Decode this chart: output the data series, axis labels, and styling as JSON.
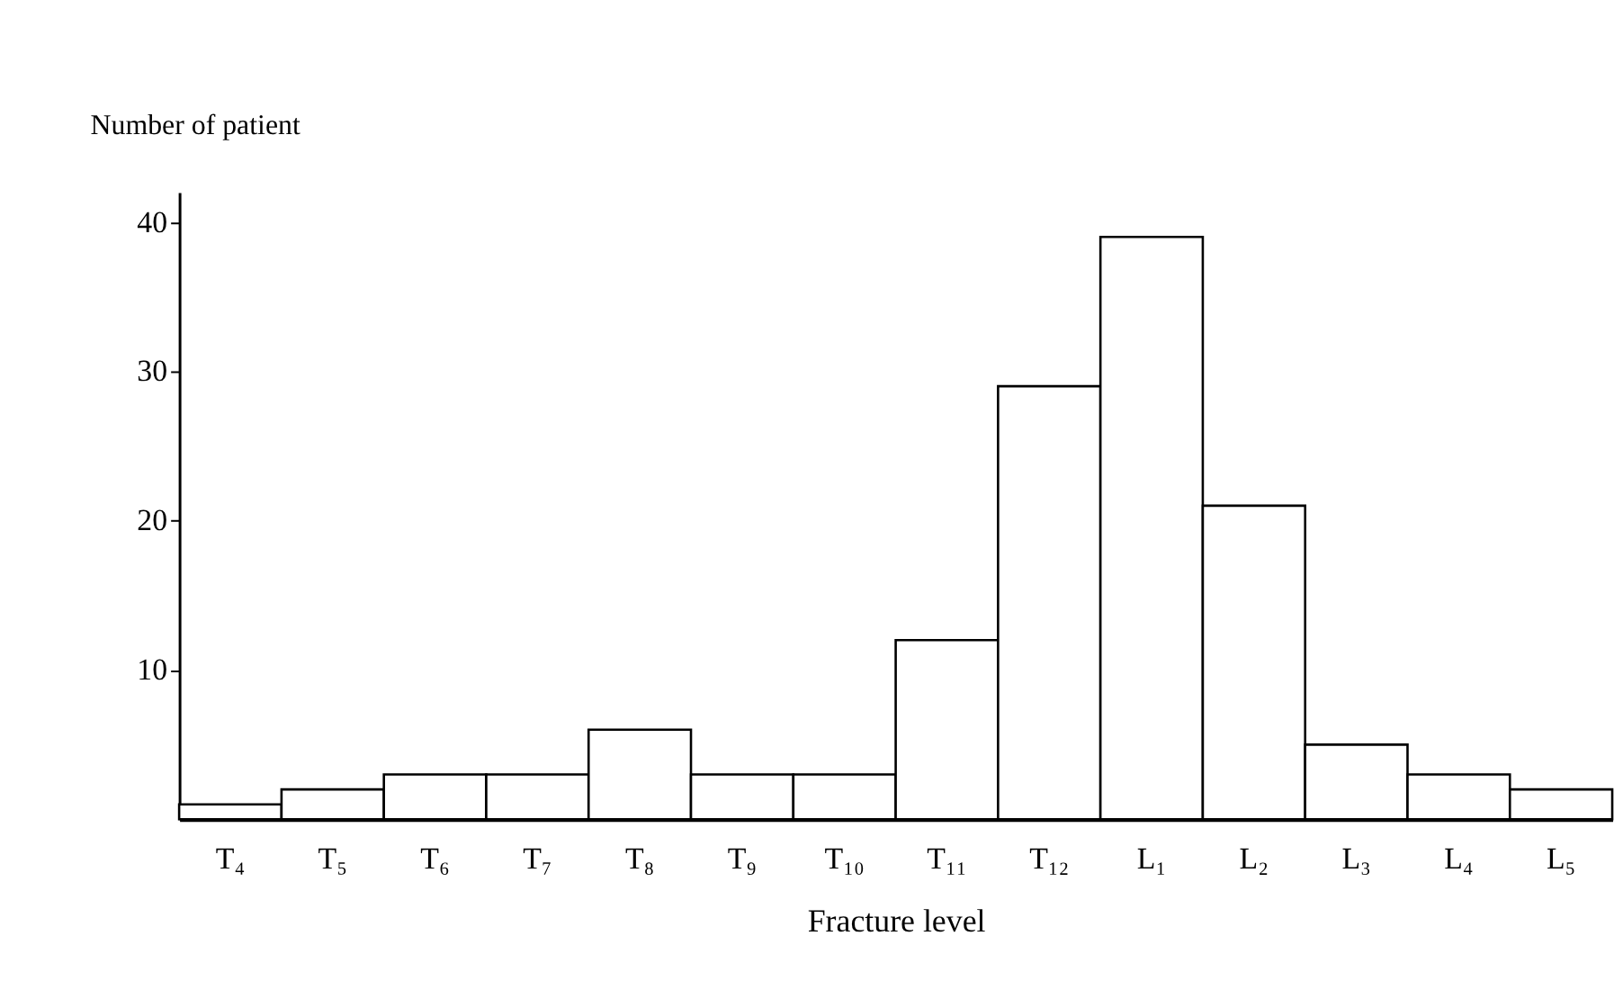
{
  "chart_data": {
    "type": "bar",
    "xlabel": "Fracture level",
    "ylabel": "Number of patient",
    "categories": [
      "T₄",
      "T₅",
      "T₆",
      "T₇",
      "T₈",
      "T₉",
      "T₁₀",
      "T₁₁",
      "T₁₂",
      "L₁",
      "L₂",
      "L₃",
      "L₄",
      "L₅"
    ],
    "values": [
      1,
      2,
      3,
      3,
      6,
      3,
      3,
      12,
      29,
      39,
      21,
      5,
      3,
      2
    ],
    "color": "#ffffff",
    "ylim": [
      0,
      42
    ],
    "yticks": [
      10,
      20,
      30,
      40
    ],
    "grid": false
  }
}
